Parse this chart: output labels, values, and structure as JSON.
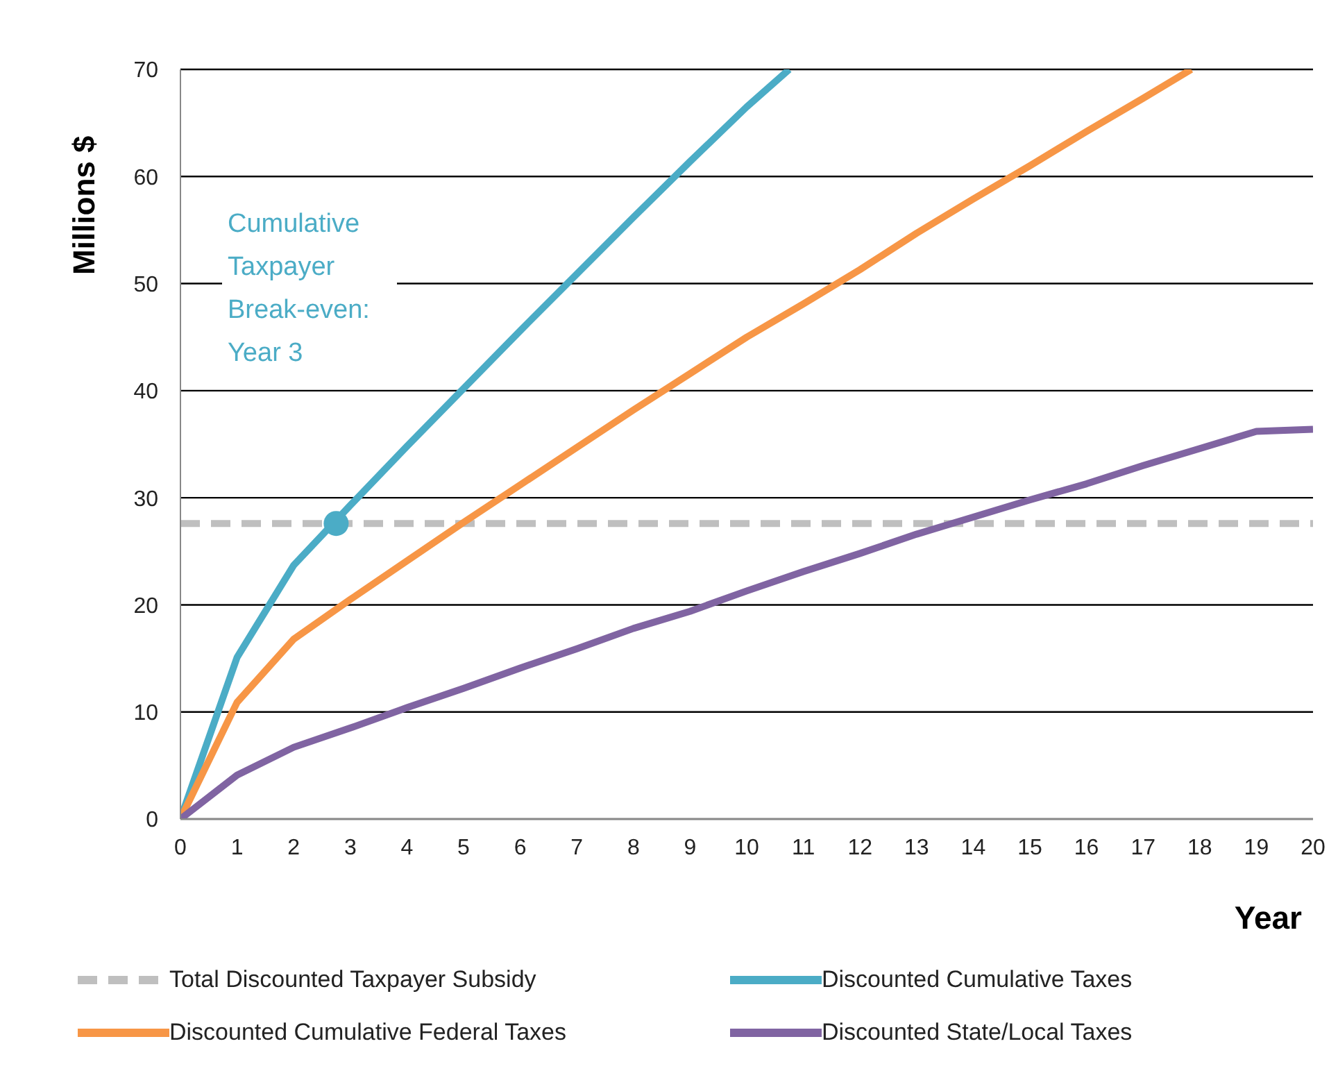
{
  "chart_data": {
    "type": "line",
    "xlabel": "Year",
    "ylabel": "Millions $",
    "xlim": [
      0,
      20
    ],
    "xticks": [
      0,
      1,
      2,
      3,
      4,
      5,
      6,
      7,
      8,
      9,
      10,
      11,
      12,
      13,
      14,
      15,
      16,
      17,
      18,
      19,
      20
    ],
    "ylim": [
      0,
      70
    ],
    "yticks": [
      0,
      10,
      20,
      30,
      40,
      50,
      60,
      70
    ],
    "grid": "y",
    "legend": "bottom",
    "marker": "none",
    "annotations": [
      "Cumulative Taxpayer Break-even: Year 3"
    ],
    "series": [
      {
        "name": "Total Discounted Taxpayer Subsidy",
        "color": "#bfbfbf",
        "line_style": "dashed",
        "x": [
          0,
          20
        ],
        "values": [
          27.6,
          27.6
        ]
      },
      {
        "name": "Discounted Cumulative Taxes",
        "color": "#4bacc6",
        "x": [
          0,
          1,
          2,
          3,
          4,
          5,
          6,
          7,
          8,
          9,
          10,
          10.75
        ],
        "values": [
          0,
          15.1,
          23.7,
          29.3,
          34.8,
          40.2,
          45.6,
          50.9,
          56.2,
          61.4,
          66.5,
          70
        ]
      },
      {
        "name": "Discounted Cumulative Federal Taxes",
        "color": "#f79646",
        "x": [
          0,
          1,
          2,
          3,
          4,
          5,
          6,
          7,
          8,
          9,
          10,
          11,
          12,
          13,
          14,
          15,
          16,
          17,
          17.85
        ],
        "values": [
          0,
          10.9,
          16.8,
          20.5,
          24.1,
          27.7,
          31.2,
          34.7,
          38.2,
          41.6,
          45.0,
          48.1,
          51.3,
          54.7,
          57.9,
          61.0,
          64.2,
          67.3,
          70
        ]
      },
      {
        "name": "Discounted State/Local Taxes",
        "color": "#8064a2",
        "x": [
          0,
          1,
          2,
          3,
          4,
          5,
          6,
          7,
          8,
          9,
          10,
          11,
          12,
          13,
          14,
          15,
          16,
          17,
          18,
          19,
          20
        ],
        "values": [
          0,
          4.1,
          6.7,
          8.5,
          10.4,
          12.2,
          14.1,
          15.9,
          17.8,
          19.4,
          21.3,
          23.1,
          24.8,
          26.6,
          28.2,
          29.8,
          31.3,
          33.0,
          34.6,
          36.2,
          36.4
        ]
      },
      {
        "type": "scatter",
        "marker": "circle",
        "color": "#4bacc6",
        "x": [
          2.75
        ],
        "values": [
          27.6
        ]
      }
    ]
  }
}
